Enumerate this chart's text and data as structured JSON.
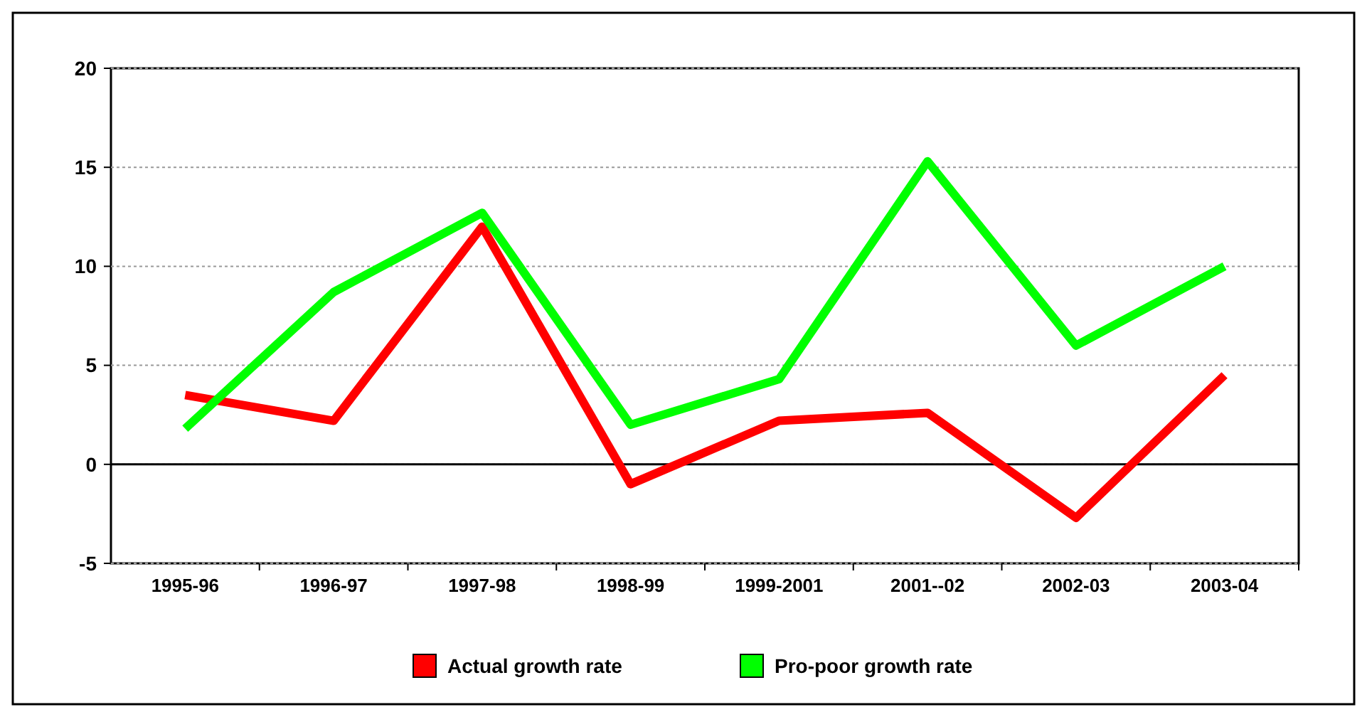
{
  "chart_data": {
    "type": "line",
    "categories": [
      "1995-96",
      "1996-97",
      "1997-98",
      "1998-99",
      "1999-2001",
      "2001--02",
      "2002-03",
      "2003-04"
    ],
    "series": [
      {
        "name": "Actual growth rate",
        "color": "#ff0000",
        "values": [
          3.5,
          2.2,
          12,
          -1,
          2.2,
          2.6,
          -2.7,
          4.5
        ]
      },
      {
        "name": "Pro-poor growth rate",
        "color": "#00ff00",
        "values": [
          1.8,
          8.7,
          12.7,
          2,
          4.3,
          15.3,
          6,
          10
        ]
      }
    ],
    "ylim": [
      -5,
      20
    ],
    "yticks": [
      -5,
      0,
      5,
      10,
      15,
      20
    ],
    "grid": "y",
    "legend": "bottom",
    "marker": "none",
    "line_style": "solid"
  }
}
